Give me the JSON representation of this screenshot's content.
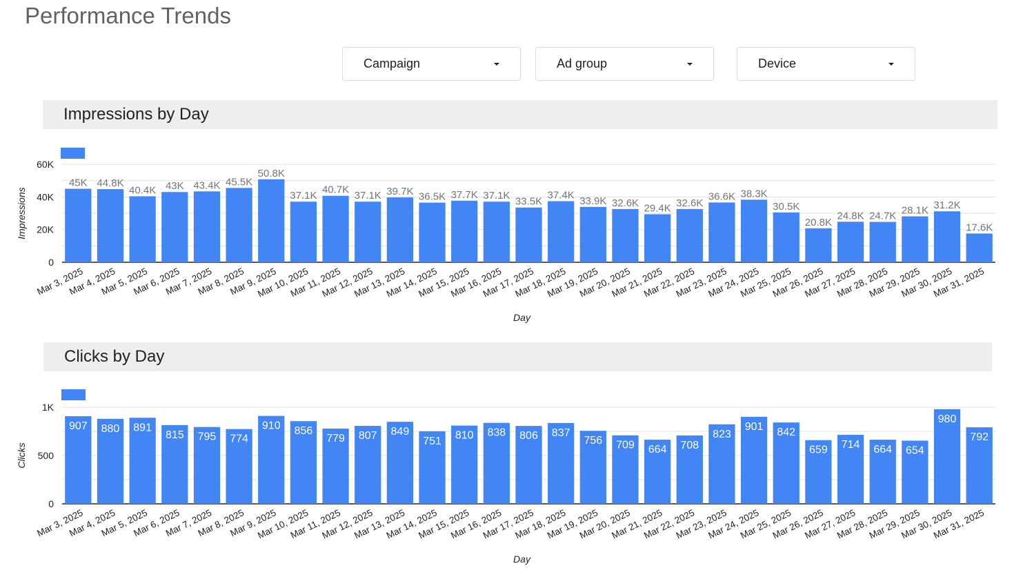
{
  "page": {
    "title": "Performance Trends"
  },
  "filters": [
    {
      "label": "Campaign"
    },
    {
      "label": "Ad group"
    },
    {
      "label": "Device"
    }
  ],
  "colors": {
    "bar": "#4285f4",
    "grid": "#e0e0e0",
    "axis": "#202124",
    "header_bg": "#eeeeee"
  },
  "chart_data": [
    {
      "type": "bar",
      "title": "Impressions  by Day",
      "xlabel": "Day",
      "ylabel": "Impressions",
      "ylim": [
        0,
        60000
      ],
      "yticks": [
        0,
        20000,
        40000,
        60000
      ],
      "ytick_labels": [
        "0",
        "20K",
        "40K",
        "60K"
      ],
      "categories": [
        "Mar 3, 2025",
        "Mar 4, 2025",
        "Mar 5, 2025",
        "Mar 6, 2025",
        "Mar 7, 2025",
        "Mar 8, 2025",
        "Mar 9, 2025",
        "Mar 10, 2025",
        "Mar 11, 2025",
        "Mar 12, 2025",
        "Mar 13, 2025",
        "Mar 14, 2025",
        "Mar 15, 2025",
        "Mar 16, 2025",
        "Mar 17, 2025",
        "Mar 18, 2025",
        "Mar 19, 2025",
        "Mar 20, 2025",
        "Mar 21, 2025",
        "Mar 22, 2025",
        "Mar 23, 2025",
        "Mar 24, 2025",
        "Mar 25, 2025",
        "Mar 26, 2025",
        "Mar 27, 2025",
        "Mar 28, 2025",
        "Mar 29, 2025",
        "Mar 30, 2025",
        "Mar 31, 2025"
      ],
      "values": [
        45000,
        44800,
        40400,
        43000,
        43400,
        45500,
        50800,
        37100,
        40700,
        37100,
        39700,
        36500,
        37700,
        37100,
        33500,
        37400,
        33900,
        32600,
        29400,
        32600,
        36600,
        38300,
        30500,
        20800,
        24800,
        24700,
        28100,
        31200,
        17600
      ],
      "data_labels": [
        "45K",
        "44.8K",
        "40.4K",
        "43K",
        "43.4K",
        "45.5K",
        "50.8K",
        "37.1K",
        "40.7K",
        "37.1K",
        "39.7K",
        "36.5K",
        "37.7K",
        "37.1K",
        "33.5K",
        "37.4K",
        "33.9K",
        "32.6K",
        "29.4K",
        "32.6K",
        "36.6K",
        "38.3K",
        "30.5K",
        "20.8K",
        "24.8K",
        "24.7K",
        "28.1K",
        "31.2K",
        "17.6K"
      ],
      "grid": true,
      "legend": "top-left"
    },
    {
      "type": "bar",
      "title": "Clicks by Day",
      "xlabel": "Day",
      "ylabel": "Clicks",
      "ylim": [
        0,
        1000
      ],
      "yticks": [
        0,
        500,
        1000
      ],
      "ytick_labels": [
        "0",
        "500",
        "1K"
      ],
      "categories": [
        "Mar 3, 2025",
        "Mar 4, 2025",
        "Mar 5, 2025",
        "Mar 6, 2025",
        "Mar 7, 2025",
        "Mar 8, 2025",
        "Mar 9, 2025",
        "Mar 10, 2025",
        "Mar 11, 2025",
        "Mar 12, 2025",
        "Mar 13, 2025",
        "Mar 14, 2025",
        "Mar 15, 2025",
        "Mar 16, 2025",
        "Mar 17, 2025",
        "Mar 18, 2025",
        "Mar 19, 2025",
        "Mar 20, 2025",
        "Mar 21, 2025",
        "Mar 22, 2025",
        "Mar 23, 2025",
        "Mar 24, 2025",
        "Mar 25, 2025",
        "Mar 26, 2025",
        "Mar 27, 2025",
        "Mar 28, 2025",
        "Mar 29, 2025",
        "Mar 30, 2025",
        "Mar 31, 2025"
      ],
      "values": [
        907,
        880,
        891,
        815,
        795,
        774,
        910,
        856,
        779,
        807,
        849,
        751,
        810,
        838,
        806,
        837,
        756,
        709,
        664,
        708,
        823,
        901,
        842,
        659,
        714,
        664,
        654,
        980,
        792
      ],
      "data_labels": [
        "907",
        "880",
        "891",
        "815",
        "795",
        "774",
        "910",
        "856",
        "779",
        "807",
        "849",
        "751",
        "810",
        "838",
        "806",
        "837",
        "756",
        "709",
        "664",
        "708",
        "823",
        "901",
        "842",
        "659",
        "714",
        "664",
        "654",
        "980",
        "792"
      ],
      "grid": true,
      "legend": "top-left"
    }
  ]
}
